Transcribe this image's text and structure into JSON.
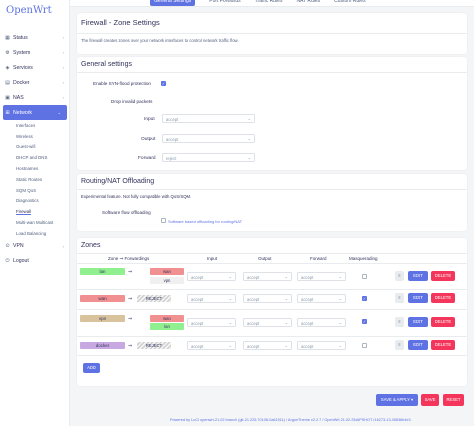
{
  "brand": "OpenWrt",
  "sidebar": {
    "items": [
      {
        "label": "Status",
        "icon": "status-icon"
      },
      {
        "label": "System",
        "icon": "gear-icon"
      },
      {
        "label": "Services",
        "icon": "services-icon"
      },
      {
        "label": "Docker",
        "icon": "docker-icon"
      },
      {
        "label": "NAS",
        "icon": "nas-icon"
      },
      {
        "label": "Network",
        "icon": "network-icon"
      }
    ],
    "network_sub": [
      "Interfaces",
      "Wireless",
      "Guest-wifi",
      "DHCP and DNS",
      "Hostnames",
      "Static Routes",
      "SQM QoS",
      "Diagnostics",
      "Firewall",
      "Multi-wan Multicast",
      "Load Balancing"
    ],
    "after": [
      {
        "label": "VPN",
        "icon": "vpn-icon"
      },
      {
        "label": "Logout",
        "icon": "logout-icon"
      }
    ]
  },
  "tabs": [
    "General Settings",
    "Port Forwards",
    "Traffic Rules",
    "NAT Rules",
    "Custom Rules"
  ],
  "page": {
    "title": "Firewall - Zone Settings",
    "description": "The firewall creates zones over your network interfaces to control network traffic flow."
  },
  "general": {
    "title": "General settings",
    "syn_label": "Enable SYN-flood protection",
    "drop_label": "Drop invalid packets",
    "input_label": "Input",
    "input_value": "accept",
    "output_label": "Output",
    "output_value": "accept",
    "forward_label": "Forward",
    "forward_value": "reject"
  },
  "offload": {
    "title": "Routing/NAT Offloading",
    "desc": "Experimental feature. Not fully compatible with QoS/SQM.",
    "sw_label": "Software flow offloading",
    "sw_desc": "Software based offloading for routing/NAT"
  },
  "zones": {
    "title": "Zones",
    "headers": {
      "zone": "Zone ⇒ Forwardings",
      "input": "Input",
      "output": "Output",
      "forward": "Forward",
      "masq": "Masquerading"
    },
    "rows": [
      {
        "name": "lan",
        "color": "#90f090",
        "targets": [
          {
            "name": "wan",
            "color": "#f09090"
          },
          {
            "name": "vpn",
            "color": "#f0f0f0"
          }
        ],
        "input": "accept",
        "output": "accept",
        "forward": "accept",
        "masq": false
      },
      {
        "name": "wan",
        "color": "#f09090",
        "targets": [],
        "input": "accept",
        "output": "accept",
        "forward": "accept",
        "masq": true
      },
      {
        "name": "vpn",
        "color": "#d9c39d",
        "targets": [
          {
            "name": "wan",
            "color": "#f09090"
          },
          {
            "name": "lan",
            "color": "#90f090"
          }
        ],
        "input": "accept",
        "output": "accept",
        "forward": "accept",
        "masq": true
      },
      {
        "name": "docker",
        "color": "#c8a8e0",
        "targets": [],
        "input": "accept",
        "output": "accept",
        "forward": "accept",
        "masq": false
      }
    ],
    "reject_label": "REJECT",
    "arrow": "⇒",
    "edit_label": "EDIT",
    "delete_label": "DELETE",
    "add_label": "ADD"
  },
  "actions": {
    "save_apply": "SAVE & APPLY ▾",
    "save": "SAVE",
    "reset": "RESET"
  },
  "footer": "Powered by LuCI openwrt-21.02 branch (git-21.225.70108-0a61511) / ArgonTheme v2.2.7 / OpenWrt 21.02-SNAPSHOT r16273-13.45836b4e3"
}
